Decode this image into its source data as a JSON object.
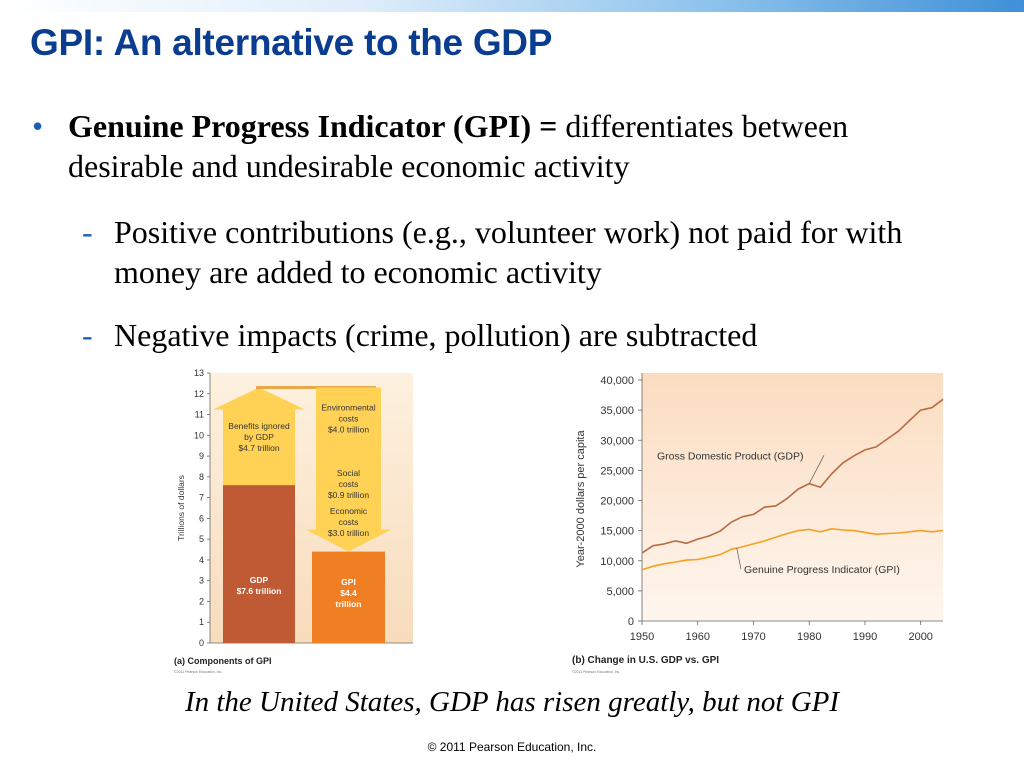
{
  "slide": {
    "title": "GPI: An alternative to the GDP",
    "bullet": {
      "term": "Genuine Progress Indicator (GPI) =",
      "definition": " differentiates between desirable and undesirable economic activity"
    },
    "sub_bullets": [
      "Positive contributions (e.g., volunteer work) not paid for with money are added to economic activity",
      "Negative impacts (crime, pollution) are subtracted"
    ],
    "caption": "In the United States, GDP has risen greatly, but not GPI",
    "copyright": "© 2011 Pearson Education, Inc.",
    "colors": {
      "title": "#0a3d8f",
      "bullet": "#1f5fb3",
      "gdp_bar": "#c05a35",
      "gpi_bar": "#f07f24",
      "arrow": "#ffd256",
      "panel_bg": "#fbe7cf",
      "gdp_line": "#b86a43",
      "gpi_line": "#f3a11e"
    }
  },
  "chart_data": [
    {
      "type": "bar",
      "caption": "(a) Components of GPI",
      "credit": "©2011 Pearson Education, Inc.",
      "ylabel": "Trillions of dollars",
      "ylim": [
        0,
        13
      ],
      "yticks": [
        "0",
        "1",
        "2",
        "3",
        "4",
        "5",
        "6",
        "7",
        "8",
        "9",
        "10",
        "11",
        "12",
        "13"
      ],
      "bars": [
        {
          "label": "GDP",
          "value_label": "$7.6 trillion",
          "value": 7.6
        },
        {
          "label": "GPI",
          "value_label": "$4.4 trillion",
          "value": 4.4
        }
      ],
      "added": {
        "label": "Benefits ignored by GDP",
        "value_label": "$4.7 trillion",
        "value": 4.7
      },
      "subtracted": [
        {
          "label": "Environmental costs",
          "value_label": "$4.0 trillion",
          "value": 4.0
        },
        {
          "label": "Social costs",
          "value_label": "$0.9 trillion",
          "value": 0.9
        },
        {
          "label": "Economic costs",
          "value_label": "$3.0 trillion",
          "value": 3.0
        }
      ]
    },
    {
      "type": "line",
      "caption": "(b) Change in U.S. GDP vs. GPI",
      "credit": "©2011 Pearson Education, Inc.",
      "ylabel": "Year-2000 dollars per capita",
      "xlim": [
        1950,
        2004
      ],
      "ylim": [
        0,
        40000
      ],
      "xticks": [
        "1950",
        "1960",
        "1970",
        "1980",
        "1990",
        "2000"
      ],
      "yticks": [
        "0",
        "5,000",
        "10,000",
        "15,000",
        "20,000",
        "25,000",
        "30,000",
        "35,000",
        "40,000"
      ],
      "x": [
        1950,
        1952,
        1954,
        1956,
        1958,
        1960,
        1962,
        1964,
        1966,
        1968,
        1970,
        1972,
        1974,
        1976,
        1978,
        1980,
        1982,
        1984,
        1986,
        1988,
        1990,
        1992,
        1994,
        1996,
        1998,
        2000,
        2002,
        2004
      ],
      "series": [
        {
          "name": "Gross Domestic Product (GDP)",
          "values": [
            11300,
            12500,
            12800,
            13300,
            12900,
            13600,
            14100,
            14900,
            16400,
            17300,
            17700,
            18900,
            19100,
            20300,
            21900,
            22800,
            22200,
            24400,
            26200,
            27400,
            28400,
            28900,
            30200,
            31500,
            33300,
            35000,
            35400,
            36800
          ]
        },
        {
          "name": "Genuine Progress Indicator (GPI)",
          "values": [
            8500,
            9100,
            9500,
            9800,
            10100,
            10200,
            10600,
            11000,
            11900,
            12300,
            12800,
            13300,
            13900,
            14500,
            15000,
            15200,
            14800,
            15300,
            15100,
            15000,
            14700,
            14400,
            14500,
            14600,
            14800,
            15000,
            14800,
            15000
          ]
        }
      ]
    }
  ]
}
